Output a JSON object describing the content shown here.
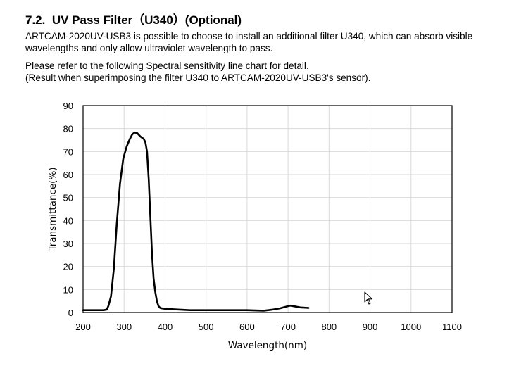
{
  "section": {
    "number": "7.2.",
    "title": "UV Pass Filter（U340）(Optional)"
  },
  "paragraphs": {
    "p1_line1": "ARTCAM-2020UV-USB3 is possible to choose to install an additional filter U340, which can absorb visible",
    "p1_line2": "wavelengths and only allow ultraviolet wavelength to pass.",
    "p2_line1": "Please refer to the following Spectral sensitivity line chart for detail.",
    "p2_line2": "(Result when superimposing the filter U340 to ARTCAM-2020UV-USB3's sensor)."
  },
  "chart_data": {
    "type": "line",
    "title": "",
    "xlabel": "Wavelength(nm)",
    "ylabel": "Transmittance(%)",
    "xlim": [
      200,
      1100
    ],
    "ylim": [
      0,
      90
    ],
    "xticks": [
      200,
      300,
      400,
      500,
      600,
      700,
      800,
      900,
      1000,
      1100
    ],
    "yticks": [
      0,
      10,
      20,
      30,
      40,
      50,
      60,
      70,
      80,
      90
    ],
    "grid": true,
    "legend": "none",
    "series": [
      {
        "color": "#000000",
        "x": [
          200,
          230,
          250,
          258,
          262,
          268,
          275,
          282,
          290,
          298,
          306,
          314,
          320,
          326,
          332,
          340,
          348,
          352,
          356,
          360,
          364,
          368,
          372,
          376,
          380,
          384,
          388,
          392,
          396,
          400,
          420,
          440,
          460,
          480,
          500,
          530,
          560,
          600,
          640,
          660,
          680,
          695,
          705,
          715,
          730,
          750
        ],
        "y": [
          1.0,
          1.0,
          1.0,
          1.3,
          3,
          7,
          19,
          38,
          56,
          67,
          72,
          75.5,
          77.5,
          78.3,
          78.0,
          76.5,
          75.5,
          74,
          70,
          58,
          42,
          26,
          15,
          9,
          5,
          2.8,
          2.0,
          1.8,
          1.7,
          1.6,
          1.4,
          1.2,
          1.0,
          1.0,
          1.0,
          1.0,
          1.0,
          1.0,
          0.8,
          1.2,
          1.8,
          2.5,
          3.0,
          2.7,
          2.2,
          2.0
        ]
      }
    ]
  },
  "icons": {
    "cursor": "mouse-pointer-icon"
  }
}
